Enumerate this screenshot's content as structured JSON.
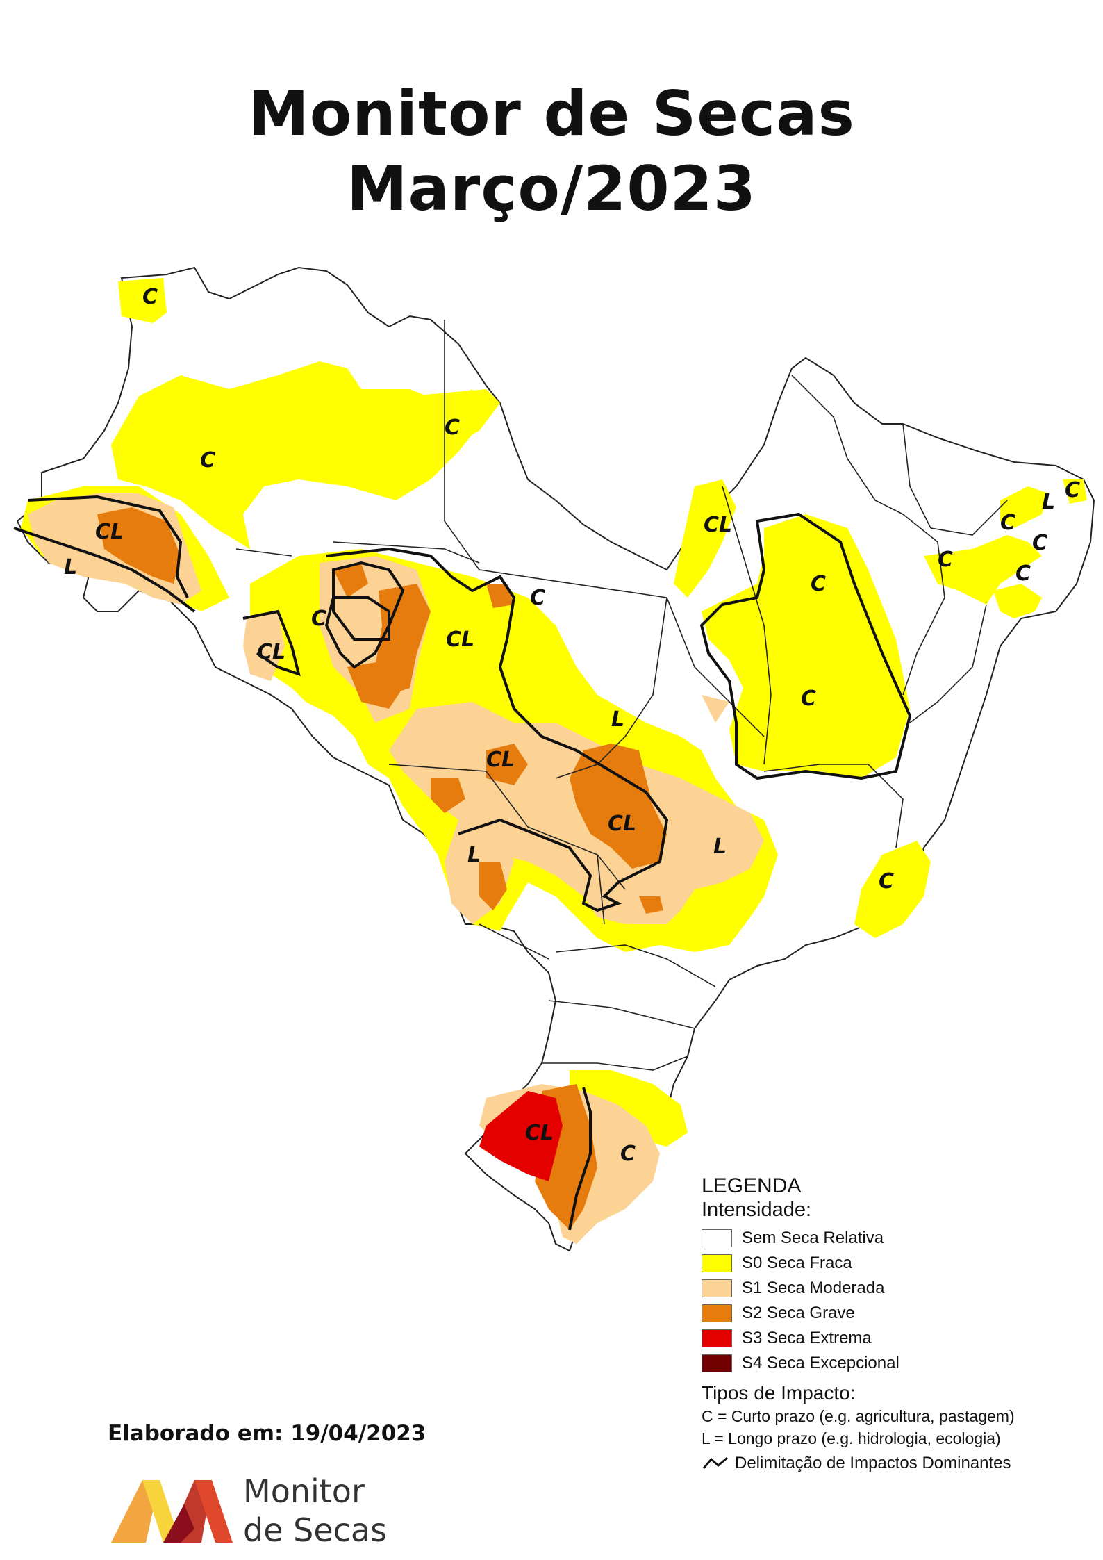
{
  "title": {
    "line1": "Monitor de Secas",
    "line2": "Março/2023"
  },
  "colors": {
    "none": "#ffffff",
    "s0": "#ffff00",
    "s1": "#fcd394",
    "s2": "#e77c0e",
    "s3": "#e50000",
    "s4": "#730000",
    "border": "#222222"
  },
  "zone_labels": [
    "C",
    "C",
    "C",
    "CL",
    "L",
    "C",
    "CL",
    "CL",
    "C",
    "L",
    "CL",
    "CL",
    "L",
    "L",
    "CL",
    "C",
    "C",
    "C",
    "C",
    "C",
    "L",
    "C",
    "C",
    "C",
    "CL",
    "C"
  ],
  "legend": {
    "heading": "LEGENDA",
    "subheading": "Intensidade:",
    "items": [
      {
        "label": "Sem Seca Relativa"
      },
      {
        "label": "S0 Seca Fraca"
      },
      {
        "label": "S1 Seca Moderada"
      },
      {
        "label": "S2 Seca Grave"
      },
      {
        "label": "S3 Seca Extrema"
      },
      {
        "label": "S4 Seca Excepcional"
      }
    ],
    "impact_heading": "Tipos de Impacto:",
    "impact_items": [
      "C = Curto prazo (e.g. agricultura, pastagem)",
      "L = Longo prazo (e.g. hidrologia, ecologia)"
    ],
    "delimitation": "Delimitação de Impactos Dominantes"
  },
  "credit": "Elaborado em: 19/04/2023",
  "logo": {
    "line1": "Monitor",
    "line2": "de Secas"
  }
}
